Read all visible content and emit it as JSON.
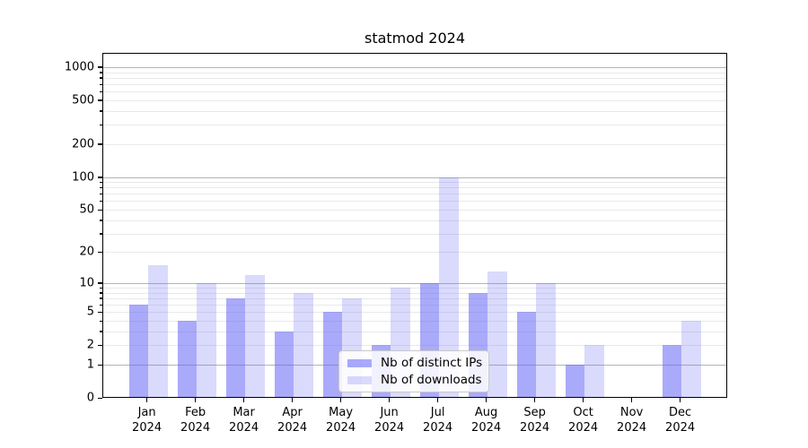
{
  "chart_data": {
    "type": "bar",
    "title": "statmod 2024",
    "y_scale": "log1p",
    "grid": "on",
    "legend_position": "lower-center",
    "categories": [
      "Jan",
      "Feb",
      "Mar",
      "Apr",
      "May",
      "Jun",
      "Jul",
      "Aug",
      "Sep",
      "Oct",
      "Nov",
      "Dec"
    ],
    "x_tick_year": "2024",
    "series": [
      {
        "name": "Nb of distinct IPs",
        "values": [
          6,
          4,
          7,
          3,
          5,
          2,
          10,
          8,
          5,
          1,
          0,
          2
        ],
        "color": "rgba(100,100,245,0.55)"
      },
      {
        "name": "Nb of downloads",
        "values": [
          15,
          10,
          12,
          8,
          7,
          9,
          100,
          13,
          10,
          2,
          0,
          4
        ],
        "color": "rgba(100,100,245,0.24)"
      }
    ],
    "y_ticks": [
      1000,
      500,
      200,
      100,
      50,
      20,
      10,
      5,
      2,
      1,
      0
    ],
    "y_major_gridlines": [
      1,
      10,
      100,
      1000
    ],
    "ylim": [
      0,
      1200
    ],
    "colors": {
      "major_grid": "#b4b4b4",
      "minor_grid": "#e9e9e9",
      "axis": "#000000",
      "legend_border": "#c9c9c9"
    }
  }
}
